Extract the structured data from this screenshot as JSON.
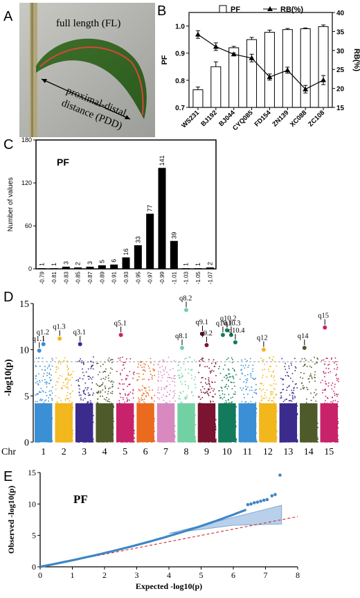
{
  "panels": {
    "A": {
      "letter": "A",
      "label_fl": "full length (FL)",
      "label_pdd_1": "proximal-distal",
      "label_pdd_2": "distance (PDD)"
    },
    "B": {
      "letter": "B"
    },
    "C": {
      "letter": "C"
    },
    "D": {
      "letter": "D"
    },
    "E": {
      "letter": "E"
    }
  },
  "chart_data": [
    {
      "id": "B",
      "type": "bar+line",
      "categories": [
        "WS231",
        "BJ192",
        "BJ044",
        "CYQ085",
        "FD154",
        "ZN139",
        "XC088",
        "ZC108"
      ],
      "series": [
        {
          "name": "PF",
          "kind": "bar",
          "axis": "left",
          "values": [
            0.765,
            0.85,
            0.92,
            0.95,
            0.977,
            0.987,
            0.99,
            0.998
          ],
          "errors": [
            0.01,
            0.018,
            0.005,
            0.008,
            0.008,
            0.004,
            0.003,
            0.006
          ]
        },
        {
          "name": "RB(%)",
          "kind": "line",
          "axis": "right",
          "values": [
            34.2,
            31.0,
            29.0,
            28.0,
            23.0,
            24.8,
            19.8,
            22.2
          ],
          "errors": [
            1.0,
            1.0,
            0.3,
            1.0,
            0.8,
            0.8,
            1.0,
            1.2
          ]
        }
      ],
      "ylabel_left": "PF",
      "ylabel_right": "RB(%)",
      "ylim_left": [
        0.7,
        1.05
      ],
      "yticks_left": [
        "0.7",
        "0.8",
        "0.9",
        "1.0"
      ],
      "ylim_right": [
        15,
        40
      ],
      "yticks_right": [
        "15",
        "20",
        "25",
        "30",
        "35",
        "40"
      ],
      "legend": [
        "PF",
        "RB(%)"
      ],
      "legend_placement": "top"
    },
    {
      "id": "C",
      "type": "bar",
      "title": "PF",
      "categories": [
        "0.77-0.79",
        "0.79-0.81",
        "0.81-0.83",
        "0.83-0.85",
        "0.85-0.87",
        "0.87-0.89",
        "0.89-0.91",
        "0.91-0.93",
        "0.93-0.95",
        "0.95-0.97",
        "0.97-0.99",
        "0.99-1.01",
        "1.01-1.03",
        "1.03-1.05",
        "1.05-1.07"
      ],
      "values": [
        1,
        1,
        3,
        2,
        3,
        5,
        6,
        16,
        33,
        77,
        141,
        39,
        1,
        1,
        2
      ],
      "ylabel": "Number of values",
      "ylim": [
        0,
        180
      ],
      "yticks": [
        "0",
        "60",
        "120",
        "180"
      ]
    },
    {
      "id": "D",
      "type": "scatter",
      "subtype": "manhattan",
      "ylabel": "-log10(p)",
      "ylim": [
        0,
        15
      ],
      "yticks": [
        "0",
        "5",
        "10",
        "15"
      ],
      "x_title": "Chr",
      "chromosomes": [
        "1",
        "2",
        "3",
        "4",
        "5",
        "6",
        "7",
        "8",
        "9",
        "10",
        "11",
        "12",
        "13",
        "14",
        "15"
      ],
      "threshold": 8.7,
      "chr_colors": [
        "#3b8fd4",
        "#f2b71c",
        "#3a2b8c",
        "#4e5a2a",
        "#c8236a",
        "#ea6a1e",
        "#d889c0",
        "#72d1a2",
        "#7b1430",
        "#137a5c",
        "#3b8fd4",
        "#f2b71c",
        "#3a2b8c",
        "#4e5a2a",
        "#c8236a"
      ],
      "qtl": [
        {
          "name": "q1.1",
          "chr": "1",
          "value": 9.9
        },
        {
          "name": "q1.2",
          "chr": "1",
          "value": 10.6
        },
        {
          "name": "q1.3",
          "chr": "2",
          "value": 11.2
        },
        {
          "name": "q3.1",
          "chr": "3",
          "value": 10.6
        },
        {
          "name": "q5.1",
          "chr": "5",
          "value": 11.6
        },
        {
          "name": "q8.1",
          "chr": "8",
          "value": 10.2
        },
        {
          "name": "q8.2",
          "chr": "8",
          "value": 14.3
        },
        {
          "name": "q9.1",
          "chr": "9",
          "value": 11.7
        },
        {
          "name": "q9.2",
          "chr": "9",
          "value": 10.5
        },
        {
          "name": "q10.1",
          "chr": "10",
          "value": 11.6
        },
        {
          "name": "q10.2",
          "chr": "10",
          "value": 12.1
        },
        {
          "name": "q10.3",
          "chr": "10",
          "value": 11.6
        },
        {
          "name": "q10.4",
          "chr": "10",
          "value": 10.8
        },
        {
          "name": "q12",
          "chr": "12",
          "value": 10.0
        },
        {
          "name": "q14",
          "chr": "14",
          "value": 10.2
        },
        {
          "name": "q15",
          "chr": "15",
          "value": 12.4
        }
      ]
    },
    {
      "id": "E",
      "type": "scatter",
      "subtype": "qq",
      "title": "PF",
      "xlabel": "Expected -log10(p)",
      "ylabel": "Observed -log10(p)",
      "xlim": [
        0,
        8
      ],
      "ylim": [
        0,
        15
      ],
      "xticks": [
        "0",
        "1",
        "2",
        "3",
        "4",
        "5",
        "6",
        "7",
        "8"
      ],
      "yticks": [
        "0",
        "5",
        "10",
        "15"
      ]
    }
  ]
}
